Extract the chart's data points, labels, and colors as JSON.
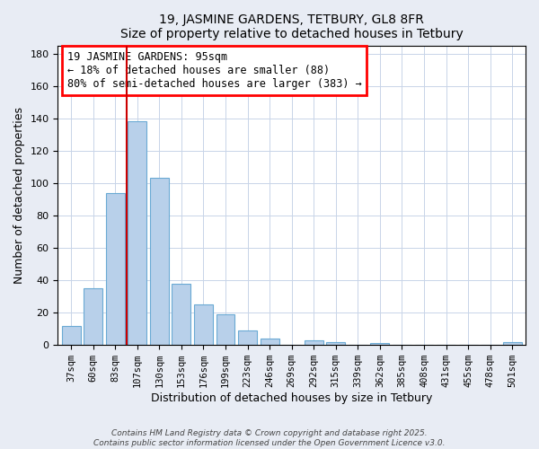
{
  "title": "19, JASMINE GARDENS, TETBURY, GL8 8FR",
  "subtitle": "Size of property relative to detached houses in Tetbury",
  "xlabel": "Distribution of detached houses by size in Tetbury",
  "ylabel": "Number of detached properties",
  "bar_labels": [
    "37sqm",
    "60sqm",
    "83sqm",
    "107sqm",
    "130sqm",
    "153sqm",
    "176sqm",
    "199sqm",
    "223sqm",
    "246sqm",
    "269sqm",
    "292sqm",
    "315sqm",
    "339sqm",
    "362sqm",
    "385sqm",
    "408sqm",
    "431sqm",
    "455sqm",
    "478sqm",
    "501sqm"
  ],
  "bar_values": [
    12,
    35,
    94,
    138,
    103,
    38,
    25,
    19,
    9,
    4,
    0,
    3,
    2,
    0,
    1,
    0,
    0,
    0,
    0,
    0,
    2
  ],
  "bar_color": "#b8d0ea",
  "bar_edgecolor": "#6aaad4",
  "vline_x": 2.5,
  "vline_color": "#cc0000",
  "ylim": [
    0,
    185
  ],
  "yticks": [
    0,
    20,
    40,
    60,
    80,
    100,
    120,
    140,
    160,
    180
  ],
  "annotation_title": "19 JASMINE GARDENS: 95sqm",
  "annotation_line1": "← 18% of detached houses are smaller (88)",
  "annotation_line2": "80% of semi-detached houses are larger (383) →",
  "footer1": "Contains HM Land Registry data © Crown copyright and database right 2025.",
  "footer2": "Contains public sector information licensed under the Open Government Licence v3.0.",
  "bg_color": "#e8ecf4",
  "plot_bg_color": "#ffffff"
}
